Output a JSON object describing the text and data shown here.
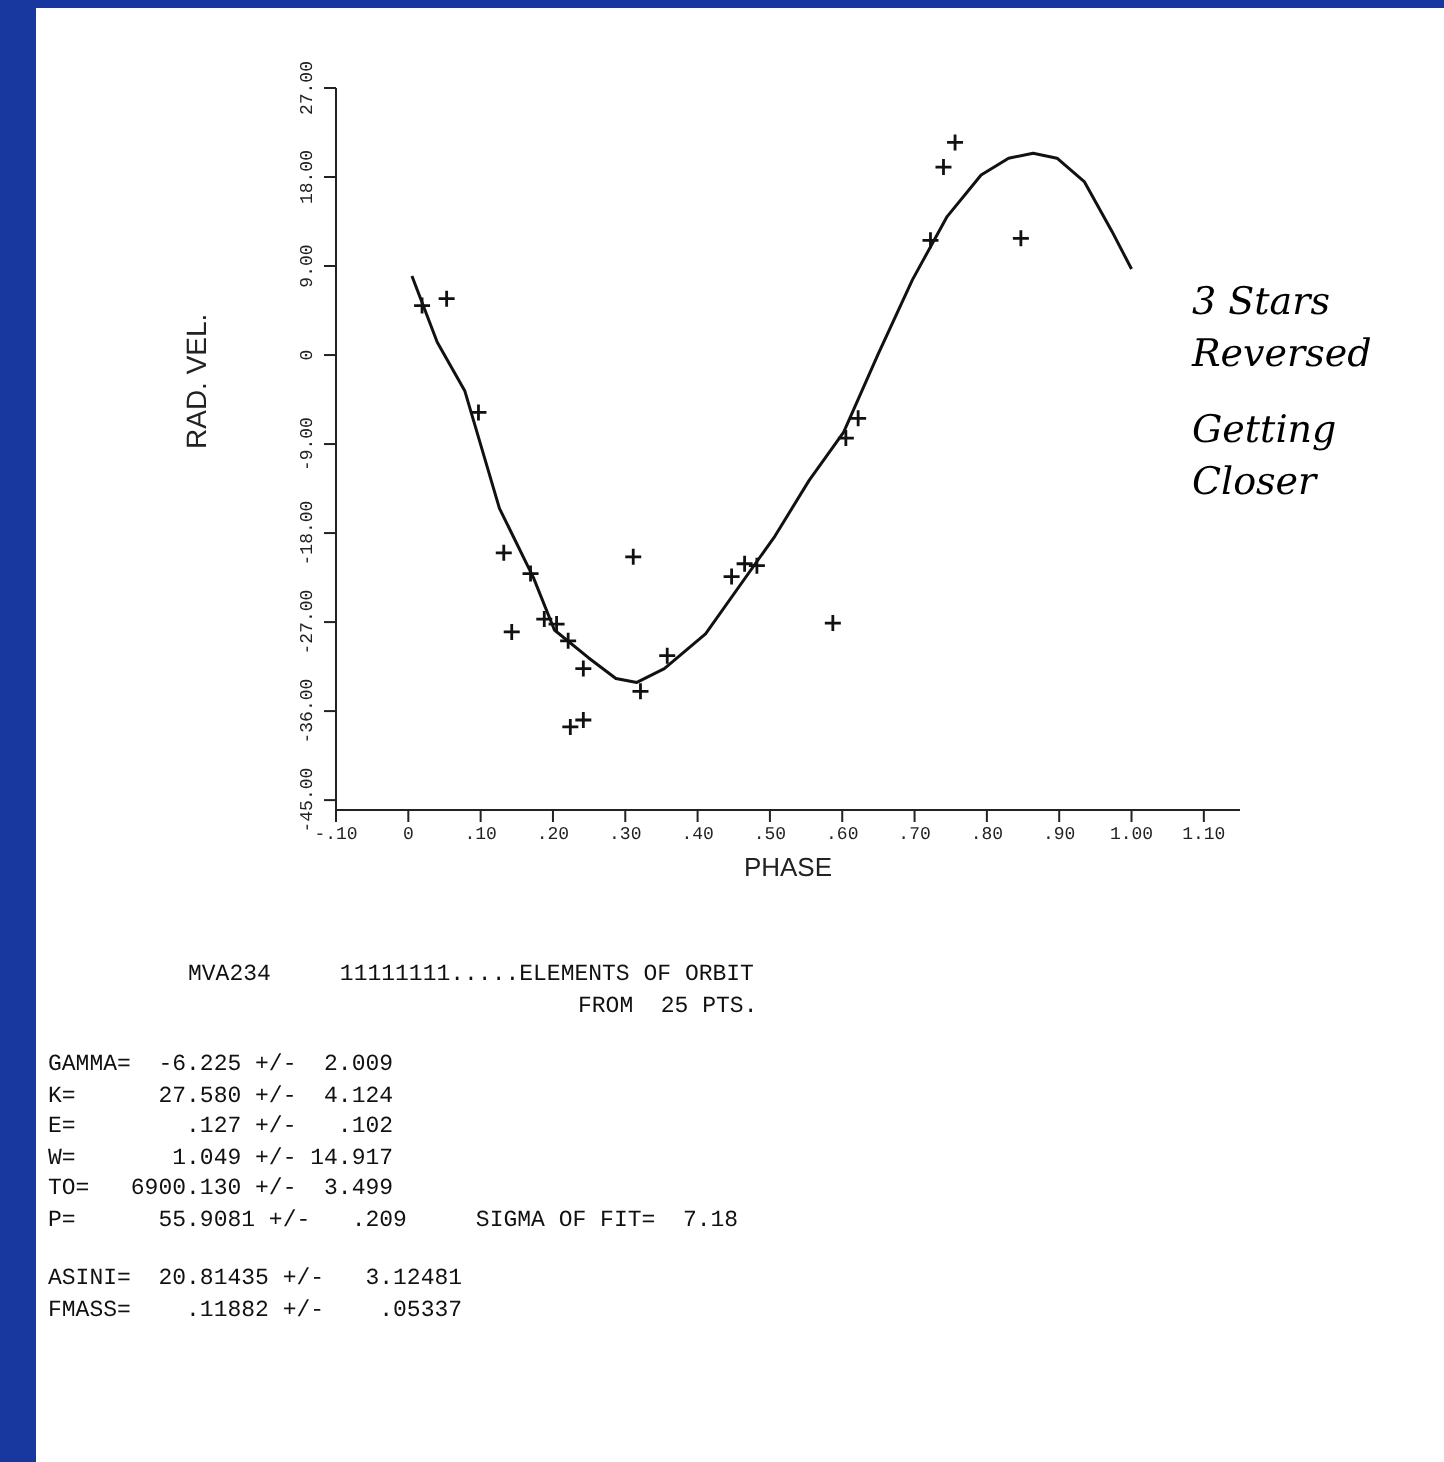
{
  "chart_data": {
    "type": "scatter",
    "xlabel": "PHASE",
    "ylabel": "RAD. VEL.",
    "xlim": [
      -0.1,
      1.15
    ],
    "xticks": [
      {
        "value": -0.1,
        "label": "-.10"
      },
      {
        "value": 0,
        "label": "0"
      },
      {
        "value": 0.1,
        "label": ".10"
      },
      {
        "value": 0.2,
        "label": ".20"
      },
      {
        "value": 0.3,
        "label": ".30"
      },
      {
        "value": 0.4,
        "label": ".40"
      },
      {
        "value": 0.5,
        "label": ".50"
      },
      {
        "value": 0.6,
        "label": ".60"
      },
      {
        "value": 0.7,
        "label": ".70"
      },
      {
        "value": 0.8,
        "label": ".80"
      },
      {
        "value": 0.9,
        "label": ".90"
      },
      {
        "value": 1,
        "label": "1.00"
      },
      {
        "value": 1.1,
        "label": "1.10"
      }
    ],
    "ylim": [
      -46,
      27
    ],
    "yticks": [
      {
        "value": -45,
        "label": "-45.00"
      },
      {
        "value": -36,
        "label": "-36.00"
      },
      {
        "value": -27,
        "label": "-27.00"
      },
      {
        "value": -18,
        "label": "-18.00"
      },
      {
        "value": -9,
        "label": "-9.00"
      },
      {
        "value": 0,
        "label": "0"
      },
      {
        "value": 9,
        "label": "9.00"
      },
      {
        "value": 18,
        "label": "18.00"
      },
      {
        "value": 27,
        "label": "27.00"
      }
    ],
    "grid": false,
    "legend": false,
    "series": [
      {
        "color": "#111111",
        "marker": "cross",
        "x": [
          0.019,
          0.053,
          0.097,
          0.132,
          0.169,
          0.143,
          0.188,
          0.205,
          0.221,
          0.242,
          0.224,
          0.242,
          0.311,
          0.321,
          0.358,
          0.447,
          0.465,
          0.482,
          0.587,
          0.605,
          0.622,
          0.722,
          0.74,
          0.756,
          0.847
        ],
        "values": [
          5.0,
          5.7,
          -5.8,
          -20.0,
          -22.1,
          -28.0,
          -26.7,
          -27.2,
          -28.9,
          -31.7,
          -37.6,
          -36.9,
          -20.4,
          -34.0,
          -30.4,
          -22.4,
          -21.1,
          -21.3,
          -27.1,
          -8.4,
          -6.4,
          11.6,
          19.0,
          21.5,
          11.8
        ]
      },
      {
        "type": "line",
        "color": "#111111",
        "marker": "none",
        "line_style": "solid",
        "x": [
          0.005,
          0.04,
          0.078,
          0.126,
          0.173,
          0.202,
          0.249,
          0.287,
          0.316,
          0.354,
          0.411,
          0.507,
          0.554,
          0.602,
          0.649,
          0.697,
          0.745,
          0.792,
          0.83,
          0.864,
          0.897,
          0.935,
          0.973,
          1.0
        ],
        "values": [
          8.0,
          1.3,
          -3.6,
          -15.5,
          -22.5,
          -27.8,
          -30.6,
          -32.7,
          -33.1,
          -31.7,
          -28.2,
          -18.3,
          -12.7,
          -7.8,
          0,
          7.6,
          14.0,
          18.2,
          19.9,
          20.4,
          19.9,
          17.5,
          12.5,
          8.7
        ]
      }
    ],
    "annotations": [
      "3 Stars Reversed",
      "Getting Closer",
      "MVA234     11111111.....ELEMENTS OF ORBIT",
      "FROM  25 PTS.",
      "GAMMA=  -6.225 +/-  2.009",
      "K=      27.580 +/-  4.124",
      "E=        .127 +/-   .102",
      "W=       1.049 +/- 14.917",
      "TO=   6900.130 +/-  3.499",
      "P=      55.9081 +/-   .209     SIGMA OF FIT=  7.18",
      "ASINI=  20.81435 +/-   3.12481",
      "FMASS=    .11882 +/-    .05337"
    ]
  }
}
